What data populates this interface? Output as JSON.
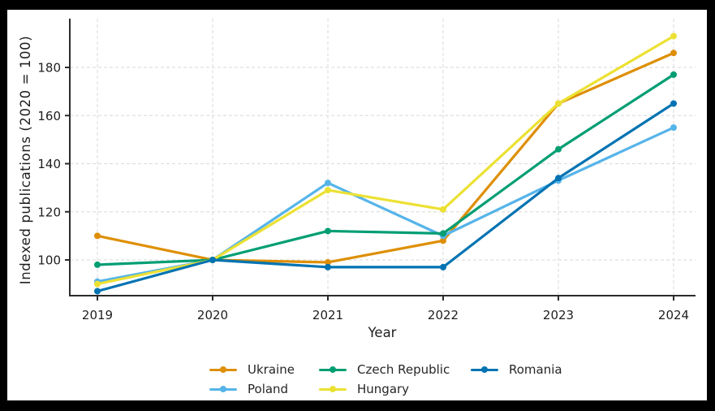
{
  "figure": {
    "surround_color": "#000000",
    "canvas_color": "#ffffff"
  },
  "style": {
    "grid_color": "#dfdfdf",
    "spine_color": "#2b2b2b",
    "tick_color": "#2b2b2b",
    "text_color": "#1f1f1f",
    "line_width": 3.2,
    "marker_radius": 4
  },
  "chart_data": {
    "type": "line",
    "title": "",
    "xlabel": "Year",
    "ylabel": "Indexed publications (2020 = 100)",
    "x": [
      "2019",
      "2020",
      "2021",
      "2022",
      "2023",
      "2024"
    ],
    "yticks": [
      100,
      120,
      140,
      160,
      180
    ],
    "ylim": [
      85,
      200
    ],
    "grid": true,
    "legend_position": "below-center",
    "series": [
      {
        "name": "Ukraine",
        "color": "#DE8F05",
        "values": [
          110,
          100,
          99,
          108,
          165,
          186
        ]
      },
      {
        "name": "Poland",
        "color": "#56B4E9",
        "values": [
          91,
          100,
          132,
          110,
          133,
          155
        ]
      },
      {
        "name": "Czech Republic",
        "color": "#029E73",
        "values": [
          98,
          100,
          112,
          111,
          146,
          177
        ]
      },
      {
        "name": "Hungary",
        "color": "#ECE133",
        "values": [
          90,
          100,
          129,
          121,
          165,
          193
        ]
      },
      {
        "name": "Romania",
        "color": "#0173B2",
        "values": [
          87,
          100,
          97,
          97,
          134,
          165
        ]
      }
    ],
    "legend_columns": [
      [
        "Ukraine",
        "Poland"
      ],
      [
        "Czech Republic",
        "Hungary"
      ],
      [
        "Romania"
      ]
    ]
  }
}
